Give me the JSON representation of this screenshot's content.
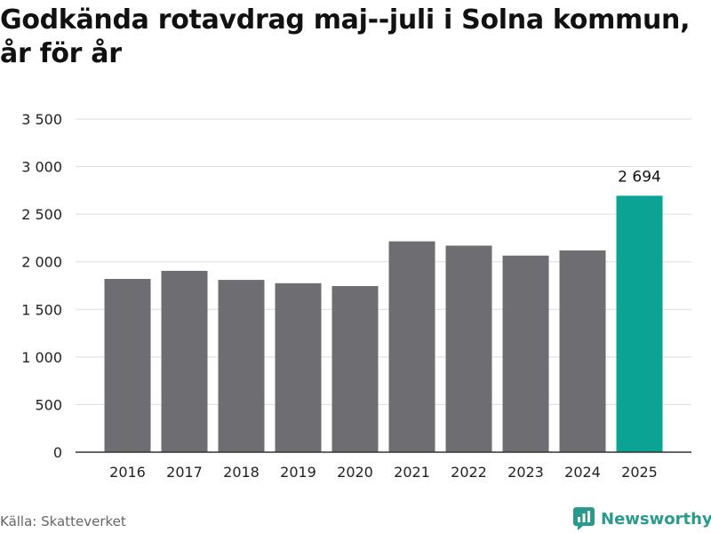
{
  "title": "Godkända rotavdrag maj--juli i Solna kommun, år för år",
  "source": "Källa: Skatteverket",
  "brand": {
    "name": "Newsworthy",
    "logo_icon": "newsworthy-logo-icon",
    "color": "#2a9a8c"
  },
  "colors": {
    "bar_default": "#6e6d72",
    "bar_highlight": "#0aa394",
    "gridline": "#dddddd",
    "axis": "#333333"
  },
  "chart_data": {
    "type": "bar",
    "title": "Godkända rotavdrag maj--juli i Solna kommun, år för år",
    "xlabel": "",
    "ylabel": "",
    "categories": [
      "2016",
      "2017",
      "2018",
      "2019",
      "2020",
      "2021",
      "2022",
      "2023",
      "2024",
      "2025"
    ],
    "values": [
      1820,
      1905,
      1810,
      1775,
      1745,
      2215,
      2170,
      2065,
      2120,
      2694
    ],
    "highlight_index": 9,
    "data_labels": [
      {
        "index": 9,
        "text": "2 694"
      }
    ],
    "ylim": [
      0,
      3500
    ],
    "yticks": [
      0,
      500,
      1000,
      1500,
      2000,
      2500,
      3000,
      3500
    ],
    "ytick_labels": [
      "0",
      "500",
      "1 000",
      "1 500",
      "2 000",
      "2 500",
      "3 000",
      "3 500"
    ],
    "grid": true,
    "legend": "none"
  }
}
